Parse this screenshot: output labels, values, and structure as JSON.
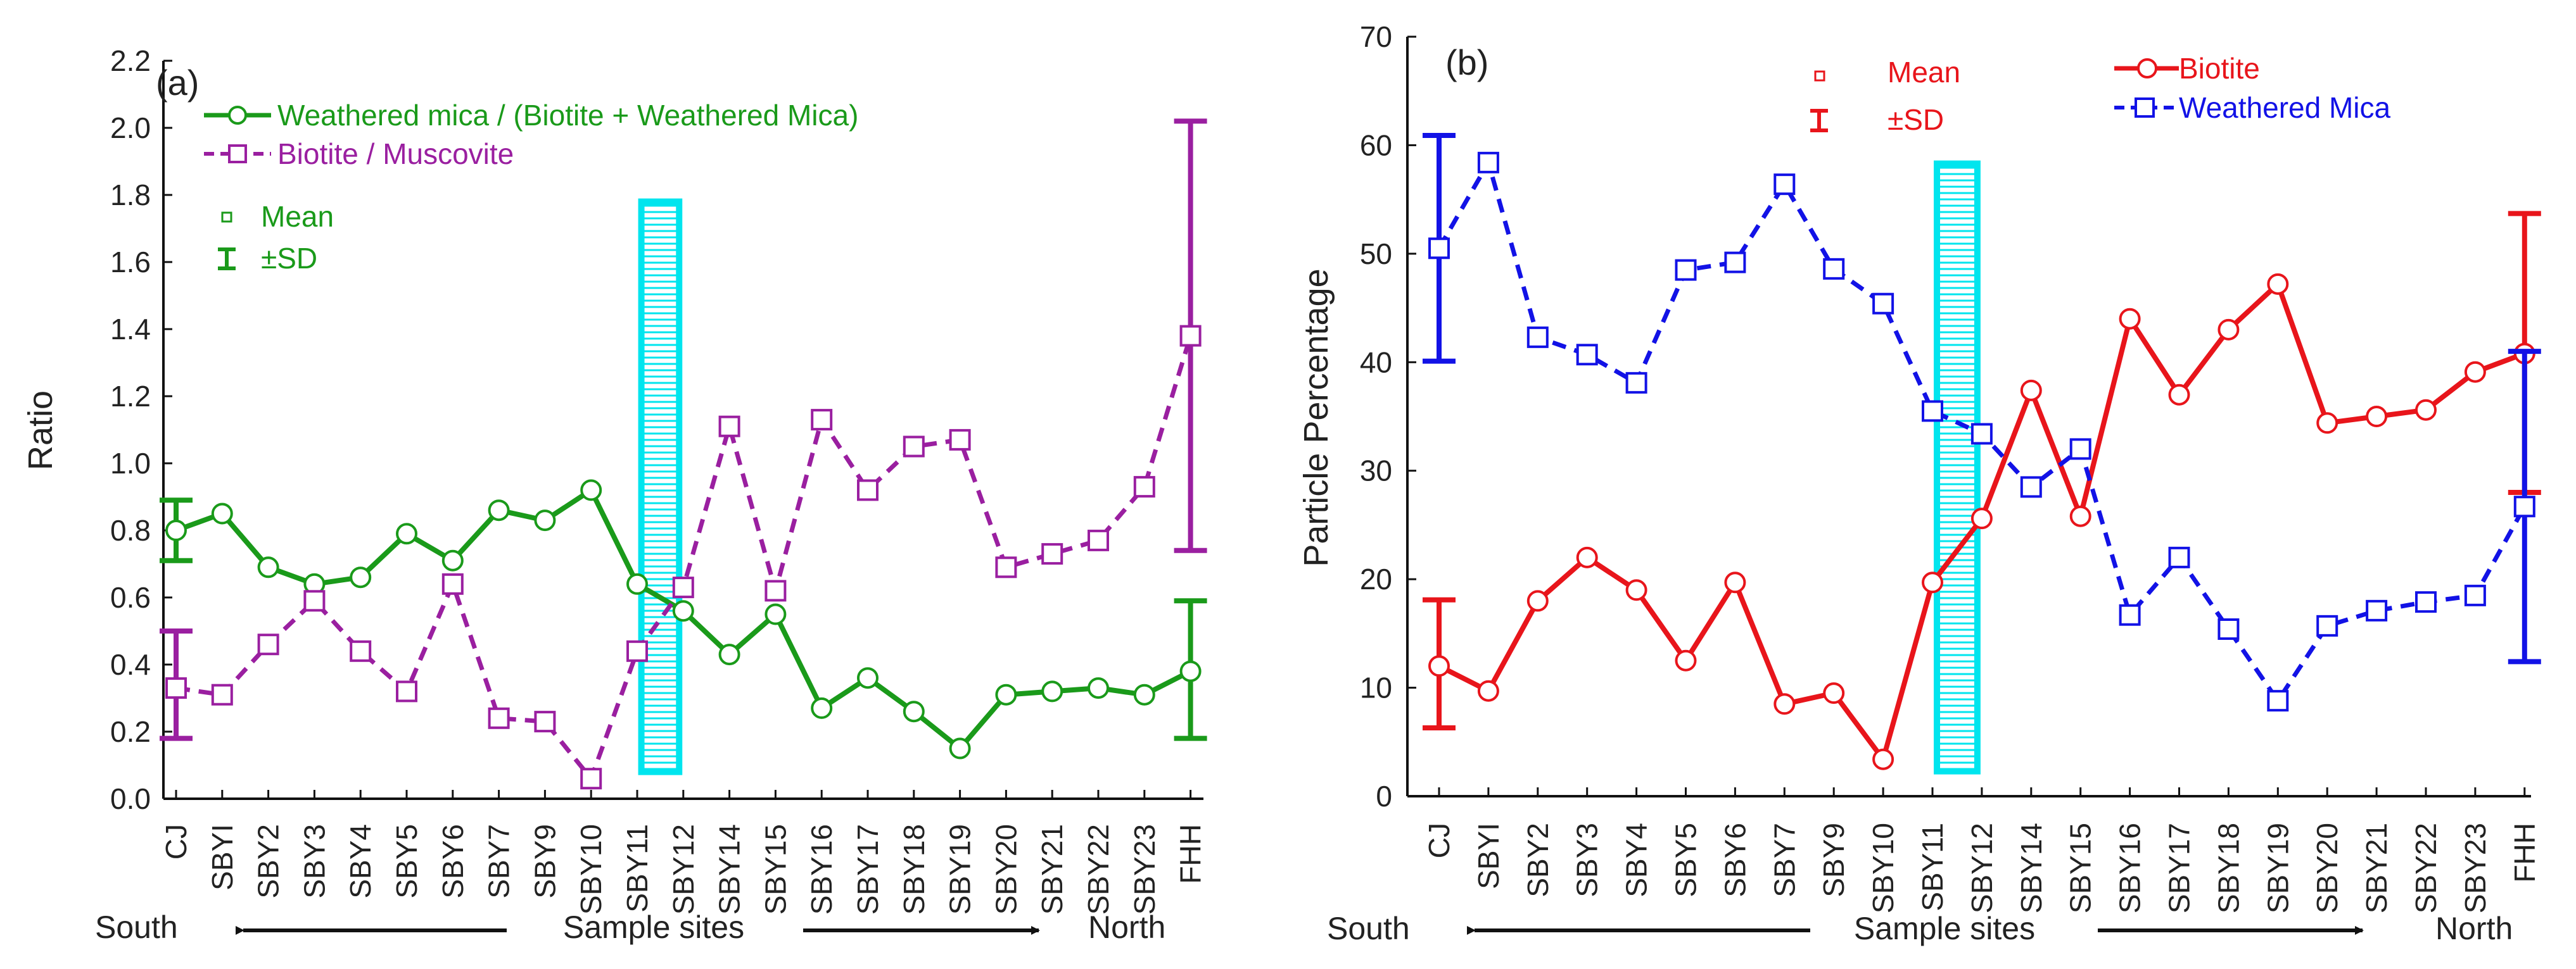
{
  "chart_data": [
    {
      "panel": "(a)",
      "type": "line",
      "ylabel": "Ratio",
      "ylim": [
        0,
        2.2
      ],
      "yticks": [
        "0.0",
        "0.2",
        "0.4",
        "0.6",
        "0.8",
        "1.0",
        "1.2",
        "1.4",
        "1.6",
        "1.8",
        "2.0",
        "2.2"
      ],
      "categories": [
        "CJ",
        "SBYI",
        "SBY2",
        "SBY3",
        "SBY4",
        "SBY5",
        "SBY6",
        "SBY7",
        "SBY9",
        "SBY10",
        "SBY11",
        "SBY12",
        "SBY14",
        "SBY15",
        "SBY16",
        "SBY17",
        "SBY18",
        "SBY19",
        "SBY20",
        "SBY21",
        "SBY22",
        "SBY23",
        "FHH"
      ],
      "series": [
        {
          "name": "Weathered mica / (Biotite + Weathered Mica)",
          "color": "#1a9a1a",
          "marker": "circle",
          "style": "solid",
          "values": [
            0.8,
            0.85,
            0.69,
            0.64,
            0.66,
            0.79,
            0.71,
            0.86,
            0.83,
            0.92,
            0.64,
            0.56,
            0.43,
            0.55,
            0.27,
            0.36,
            0.26,
            0.15,
            0.31,
            0.32,
            0.33,
            0.31,
            0.38
          ],
          "sd": {
            "CJ": [
              0.71,
              0.89
            ],
            "FHH": [
              0.18,
              0.59
            ]
          }
        },
        {
          "name": "Biotite / Muscovite",
          "color": "#9a1fa0",
          "marker": "square",
          "style": "dashed",
          "values": [
            0.33,
            0.31,
            0.46,
            0.59,
            0.44,
            0.32,
            0.64,
            0.24,
            0.23,
            0.06,
            0.44,
            0.63,
            1.11,
            0.62,
            1.13,
            0.92,
            1.05,
            1.07,
            0.69,
            0.73,
            0.77,
            0.93,
            1.38
          ],
          "sd": {
            "CJ": [
              0.18,
              0.5
            ],
            "FHH": [
              0.74,
              2.02
            ]
          }
        }
      ],
      "legend_notes": {
        "mean": "Mean",
        "sd": "±SD"
      },
      "highlight": {
        "between": [
          "SBY11",
          "SBY12"
        ],
        "color": "#00e5ee",
        "y_range": [
          0.08,
          1.78
        ]
      },
      "direction": {
        "left": "South",
        "center": "Sample sites",
        "right": "North"
      }
    },
    {
      "panel": "(b)",
      "type": "line",
      "ylabel": "Particle Percentage",
      "ylim": [
        0,
        70
      ],
      "yticks": [
        "0",
        "10",
        "20",
        "30",
        "40",
        "50",
        "60",
        "70"
      ],
      "categories": [
        "CJ",
        "SBYI",
        "SBY2",
        "SBY3",
        "SBY4",
        "SBY5",
        "SBY6",
        "SBY7",
        "SBY9",
        "SBY10",
        "SBY11",
        "SBY12",
        "SBY14",
        "SBY15",
        "SBY16",
        "SBY17",
        "SBY18",
        "SBY19",
        "SBY20",
        "SBY21",
        "SBY22",
        "SBY23",
        "FHH"
      ],
      "series": [
        {
          "name": "Biotite",
          "color": "#e8151b",
          "marker": "circle",
          "style": "solid",
          "values": [
            12,
            9.7,
            18,
            22,
            19,
            12.5,
            19.7,
            8.5,
            9.5,
            3.4,
            19.7,
            25.6,
            37.4,
            25.8,
            44,
            37,
            43,
            47.2,
            34.4,
            35,
            35.6,
            39.1,
            40.8
          ],
          "sd": {
            "CJ": [
              6.3,
              18.1
            ],
            "FHH": [
              28,
              53.7
            ]
          }
        },
        {
          "name": "Weathered Mica",
          "color": "#1212e6",
          "marker": "square",
          "style": "dashed",
          "values": [
            50.5,
            58.4,
            42.3,
            40.7,
            38.1,
            48.5,
            49.2,
            56.4,
            48.6,
            45.4,
            35.5,
            33.4,
            28.5,
            32,
            16.7,
            22,
            15.4,
            8.8,
            15.7,
            17.1,
            17.9,
            18.5,
            26.7
          ],
          "sd": {
            "CJ": [
              40.1,
              60.9
            ],
            "FHH": [
              12.4,
              41
            ]
          }
        }
      ],
      "legend_notes": {
        "mean": "Mean",
        "sd": "±SD"
      },
      "highlight": {
        "between": [
          "SBY11",
          "SBY12"
        ],
        "color": "#00e5ee",
        "y_range": [
          2.3,
          58.3
        ]
      },
      "direction": {
        "left": "South",
        "center": "Sample sites",
        "right": "North"
      }
    }
  ]
}
